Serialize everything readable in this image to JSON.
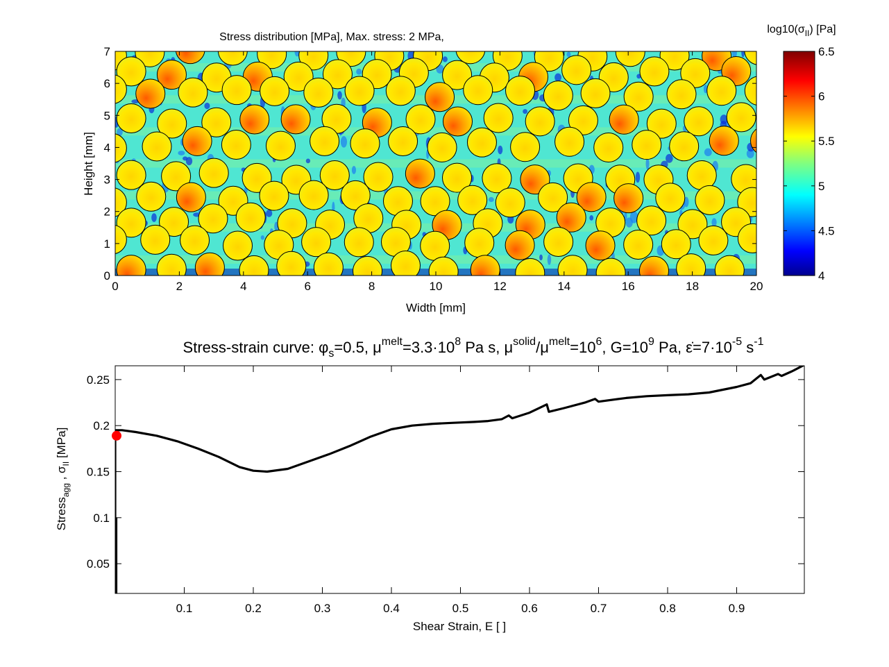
{
  "chart_data": [
    {
      "type": "heatmap",
      "title": "Stress distribution [MPa], Max. stress: 2 MPa,",
      "xlabel": "Width [mm]",
      "ylabel": "Height [mm]",
      "xlim": [
        0,
        20
      ],
      "ylim": [
        0,
        7
      ],
      "xticks": [
        "0",
        "2",
        "4",
        "6",
        "8",
        "10",
        "12",
        "14",
        "16",
        "18",
        "20"
      ],
      "yticks": [
        "0",
        "1",
        "2",
        "3",
        "4",
        "5",
        "6",
        "7"
      ],
      "colormap": "jet",
      "colorbar": {
        "label_prefix": "log10(σ",
        "label_sub": "II",
        "label_suffix": ") [Pa]",
        "range": [
          4,
          6.5
        ],
        "ticks": [
          "4",
          "4.5",
          "5",
          "5.5",
          "6",
          "6.5"
        ]
      },
      "content": "packed circular grains (~0.9 mm diameter) in hexagonal-like rows, grain interiors ~5.4–6.2, matrix ~4.2–5.2"
    },
    {
      "type": "line",
      "title_parts": {
        "prefix": "Stress-strain curve: ",
        "phi": "φ",
        "phi_sub": "s",
        "phi_val": "=0.5, ",
        "mu1": "μ",
        "mu1_sup": "melt",
        "mu1_val": "=3.3·10",
        "mu1_exp": "8",
        "mu1_unit": " Pa s, ",
        "mu2": "μ",
        "mu2_sup": "solid",
        "slash": "/",
        "mu3": "μ",
        "mu3_sup": "melt",
        "ratio_val": "=10",
        "ratio_exp": "6",
        "g_val": ", G=10",
        "g_exp": "9",
        "g_unit": " Pa, ",
        "eps": "ε̇",
        "eps_val": "=7·10",
        "eps_exp": "-5",
        "eps_unit": " s",
        "eps_unit_exp": "-1"
      },
      "xlabel": "Shear Strain, E [ ]",
      "ylabel_parts": {
        "main": "Stress",
        "sub1": "agg",
        "mid": " , σ",
        "sub2": "II",
        "unit": " [MPa]"
      },
      "xlim": [
        0,
        0.998
      ],
      "ylim": [
        0.0177,
        0.265
      ],
      "xticks": [
        "0.1",
        "0.2",
        "0.3",
        "0.4",
        "0.5",
        "0.6",
        "0.7",
        "0.8",
        "0.9"
      ],
      "yticks": [
        "0.05",
        "0.1",
        "0.15",
        "0.2",
        "0.25"
      ],
      "series": [
        {
          "name": "stress-strain",
          "color": "#000000",
          "x": [
            0,
            0,
            0.0,
            0.01,
            0.03,
            0.06,
            0.09,
            0.12,
            0.15,
            0.18,
            0.2,
            0.22,
            0.25,
            0.28,
            0.31,
            0.34,
            0.37,
            0.4,
            0.43,
            0.46,
            0.49,
            0.52,
            0.54,
            0.56,
            0.57,
            0.575,
            0.6,
            0.625,
            0.628,
            0.65,
            0.68,
            0.695,
            0.7,
            0.74,
            0.77,
            0.8,
            0.83,
            0.86,
            0.88,
            0.9,
            0.92,
            0.935,
            0.94,
            0.96,
            0.965,
            0.98,
            0.998
          ],
          "y": [
            0.1,
            0.185,
            0.195,
            0.195,
            0.193,
            0.189,
            0.183,
            0.175,
            0.166,
            0.155,
            0.151,
            0.15,
            0.153,
            0.161,
            0.169,
            0.178,
            0.188,
            0.196,
            0.2,
            0.202,
            0.203,
            0.204,
            0.205,
            0.207,
            0.211,
            0.208,
            0.214,
            0.223,
            0.215,
            0.219,
            0.225,
            0.229,
            0.226,
            0.23,
            0.232,
            0.233,
            0.234,
            0.236,
            0.239,
            0.242,
            0.246,
            0.255,
            0.25,
            0.256,
            0.254,
            0.259,
            0.266
          ]
        }
      ],
      "marker": {
        "x": 0,
        "y": 0.189,
        "color": "#ff0000"
      }
    }
  ]
}
